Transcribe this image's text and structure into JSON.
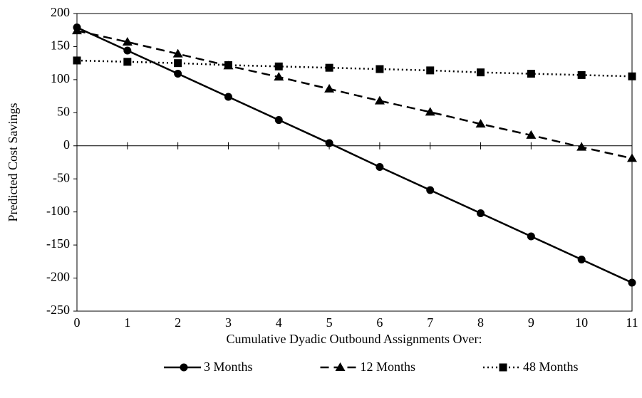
{
  "chart_data": {
    "type": "line",
    "x_label": "Cumulative Dyadic Outbound Assignments Over:",
    "y_label": "Predicted Cost Savings",
    "x": [
      0,
      1,
      2,
      3,
      4,
      5,
      6,
      7,
      8,
      9,
      10,
      11
    ],
    "series": [
      {
        "name": "3 Months",
        "color": "#000000",
        "line_style": "solid",
        "marker": "circle",
        "values": [
          179,
          144,
          109,
          74,
          39,
          4,
          -32,
          -67,
          -102,
          -137,
          -172,
          -207
        ]
      },
      {
        "name": "12 Months",
        "color": "#000000",
        "line_style": "dashed",
        "marker": "triangle",
        "values": [
          174,
          157,
          139,
          121,
          104,
          86,
          68,
          51,
          33,
          16,
          -2,
          -19
        ]
      },
      {
        "name": "48 Months",
        "color": "#000000",
        "line_style": "dotted",
        "marker": "square",
        "values": [
          129,
          127,
          125,
          122,
          120,
          118,
          116,
          114,
          111,
          109,
          107,
          105
        ]
      }
    ],
    "xlim": [
      0,
      11
    ],
    "xticks": [
      0,
      1,
      2,
      3,
      4,
      5,
      6,
      7,
      8,
      9,
      10,
      11
    ],
    "ylim": [
      -250,
      200
    ],
    "yticks": [
      -250,
      -200,
      -150,
      -100,
      -50,
      0,
      50,
      100,
      150,
      200
    ],
    "grid": false,
    "legend": "bottom"
  }
}
